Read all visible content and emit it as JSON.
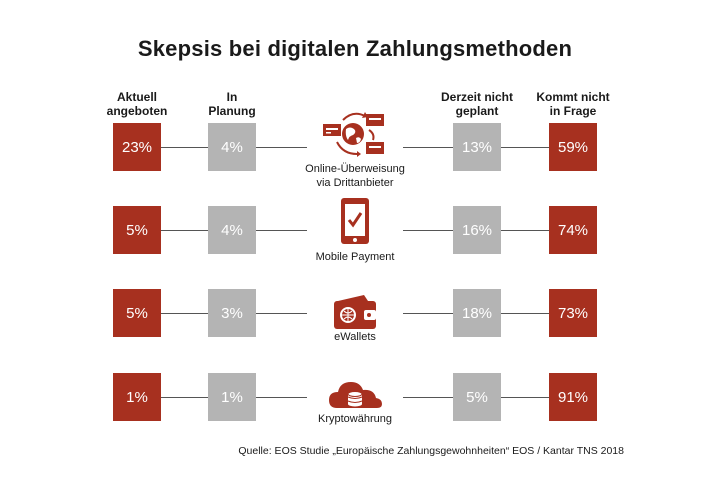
{
  "title": "Skepsis bei digitalen Zahlungsmethoden",
  "colors": {
    "red": "#a7301f",
    "gray": "#b4b4b4"
  },
  "chart_data": {
    "type": "table",
    "title": "Skepsis bei digitalen Zahlungsmethoden",
    "columns": [
      {
        "line1": "Aktuell",
        "line2": "angeboten",
        "color": "#a7301f"
      },
      {
        "line1": "In",
        "line2": "Planung",
        "color": "#b4b4b4"
      },
      {
        "line1": "Derzeit nicht",
        "line2": "geplant",
        "color": "#b4b4b4"
      },
      {
        "line1": "Kommt nicht",
        "line2": "in Frage",
        "color": "#a7301f"
      }
    ],
    "rows": [
      {
        "label1": "Online-Überweisung",
        "label2": "via Drittanbieter",
        "icon": "globe-cards-icon",
        "values": [
          "23%",
          "4%",
          "13%",
          "59%"
        ]
      },
      {
        "label1": "Mobile Payment",
        "label2": "",
        "icon": "smartphone-check-icon",
        "values": [
          "5%",
          "4%",
          "16%",
          "74%"
        ]
      },
      {
        "label1": "eWallets",
        "label2": "",
        "icon": "wallet-icon",
        "values": [
          "5%",
          "3%",
          "18%",
          "73%"
        ]
      },
      {
        "label1": "Kryptowährung",
        "label2": "",
        "icon": "cloud-coins-icon",
        "values": [
          "1%",
          "1%",
          "5%",
          "91%"
        ]
      }
    ]
  },
  "source": "Quelle: EOS Studie „Europäische Zahlungsgewohnheiten“ EOS / Kantar TNS 2018"
}
